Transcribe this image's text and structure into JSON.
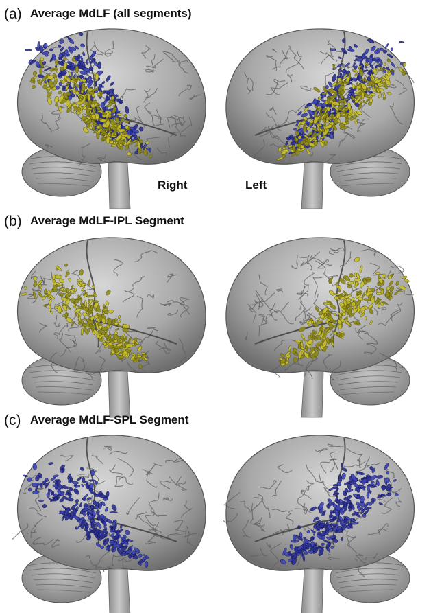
{
  "panels": [
    {
      "label": "(a)",
      "title": "Average MdLF (all segments)",
      "annotations": [
        "Right",
        "Left"
      ]
    },
    {
      "label": "(b)",
      "title": "Average MdLF-IPL Segment"
    },
    {
      "label": "(c)",
      "title": "Average MdLF-SPL Segment"
    }
  ]
}
